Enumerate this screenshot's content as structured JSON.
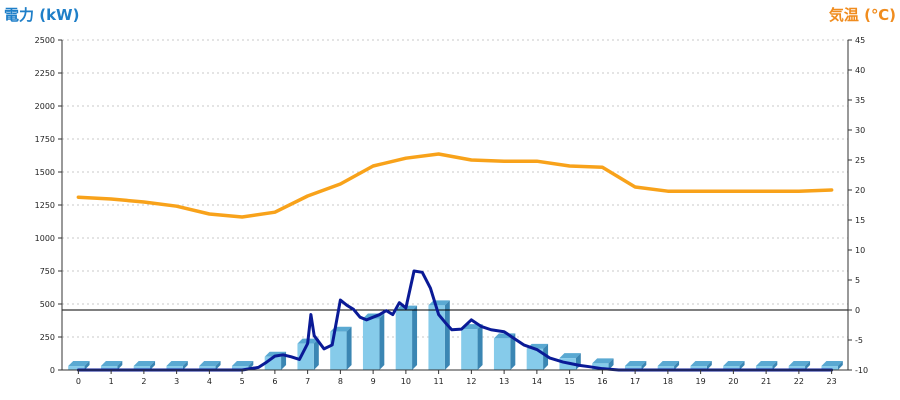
{
  "chart_data": {
    "type": "bar",
    "title": "",
    "left_axis": {
      "label": "電力 (kW)",
      "range": [
        0,
        2500
      ],
      "ticks": [
        0,
        250,
        500,
        750,
        1000,
        1250,
        1500,
        1750,
        2000,
        2250,
        2500
      ],
      "color": "#1f7fc8"
    },
    "right_axis": {
      "label": "気温 (℃)",
      "range": [
        -10,
        45
      ],
      "ticks": [
        -10,
        -5,
        0,
        5,
        10,
        15,
        20,
        25,
        30,
        35,
        40,
        45
      ],
      "color": "#f08c1e"
    },
    "x_ticks": [
      "0",
      "1",
      "2",
      "3",
      "4",
      "5",
      "6",
      "7",
      "8",
      "9",
      "10",
      "11",
      "12",
      "13",
      "14",
      "15",
      "16",
      "17",
      "18",
      "19",
      "20",
      "21",
      "22",
      "23"
    ],
    "grid": true,
    "reference_line": {
      "axis": "right",
      "value": 0
    },
    "series": [
      {
        "type": "bar",
        "axis": "left",
        "color": "#86cbea",
        "values": [
          30,
          30,
          30,
          30,
          30,
          30,
          100,
          200,
          290,
          390,
          450,
          490,
          310,
          240,
          160,
          90,
          50,
          30,
          30,
          30,
          30,
          30,
          30,
          30
        ]
      },
      {
        "type": "line",
        "axis": "right",
        "color": "#f8a21a",
        "x": [
          0,
          1,
          2,
          3,
          4,
          5,
          6,
          7,
          8,
          9,
          10,
          11,
          12,
          13,
          14,
          15,
          16,
          17,
          18,
          19,
          20,
          21,
          22,
          23
        ],
        "values": [
          18.8,
          18.5,
          18.0,
          17.3,
          16.0,
          15.5,
          16.3,
          19.0,
          21.0,
          24.0,
          25.3,
          26.0,
          25.0,
          24.8,
          24.8,
          24.0,
          23.8,
          20.5,
          19.8,
          19.8,
          19.8,
          19.8,
          19.8,
          20.0
        ]
      },
      {
        "type": "line",
        "axis": "left",
        "color": "#0a1a96",
        "x": [
          0,
          1,
          2,
          3,
          4,
          5,
          5.5,
          5.75,
          6,
          6.25,
          6.5,
          6.75,
          7,
          7.1,
          7.2,
          7.5,
          7.75,
          8,
          8.2,
          8.4,
          8.6,
          8.8,
          9,
          9.2,
          9.4,
          9.6,
          9.8,
          10,
          10.25,
          10.5,
          10.75,
          11,
          11.2,
          11.4,
          11.7,
          12,
          12.3,
          12.6,
          13,
          13.3,
          13.6,
          14,
          14.4,
          14.8,
          15,
          15.3,
          15.6,
          16,
          16.5,
          17,
          18,
          19,
          20,
          21,
          22,
          23
        ],
        "values": [
          0,
          0,
          0,
          0,
          0,
          0,
          20,
          60,
          105,
          115,
          100,
          80,
          200,
          420,
          260,
          160,
          190,
          530,
          490,
          460,
          400,
          380,
          400,
          420,
          450,
          420,
          510,
          470,
          750,
          740,
          620,
          420,
          360,
          305,
          310,
          380,
          330,
          305,
          290,
          240,
          190,
          155,
          90,
          60,
          50,
          35,
          25,
          10,
          0,
          0,
          0,
          0,
          0,
          0,
          0,
          0
        ]
      }
    ]
  }
}
